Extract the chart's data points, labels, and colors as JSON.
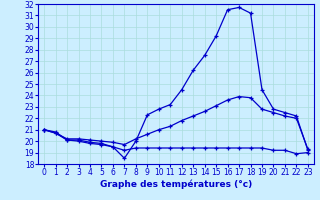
{
  "title": "Graphe des températures (°c)",
  "bg_color": "#cceeff",
  "line_color": "#0000cc",
  "xlim": [
    -0.5,
    23.5
  ],
  "ylim": [
    18,
    32
  ],
  "xticks": [
    0,
    1,
    2,
    3,
    4,
    5,
    6,
    7,
    8,
    9,
    10,
    11,
    12,
    13,
    14,
    15,
    16,
    17,
    18,
    19,
    20,
    21,
    22,
    23
  ],
  "yticks": [
    18,
    19,
    20,
    21,
    22,
    23,
    24,
    25,
    26,
    27,
    28,
    29,
    30,
    31,
    32
  ],
  "curve1_x": [
    0,
    1,
    2,
    3,
    4,
    5,
    6,
    7,
    8,
    9,
    10,
    11,
    12,
    13,
    14,
    15,
    16,
    17,
    18,
    19,
    20,
    21,
    22,
    23
  ],
  "curve1_y": [
    21.0,
    20.8,
    20.1,
    20.1,
    19.9,
    19.8,
    19.5,
    18.5,
    20.0,
    22.3,
    22.8,
    23.2,
    24.5,
    26.2,
    27.5,
    29.2,
    31.5,
    31.7,
    31.2,
    24.5,
    22.8,
    22.5,
    22.2,
    19.2
  ],
  "curve2_x": [
    0,
    1,
    2,
    3,
    4,
    5,
    6,
    7,
    8,
    9,
    10,
    11,
    12,
    13,
    14,
    15,
    16,
    17,
    18,
    19,
    20,
    21,
    22,
    23
  ],
  "curve2_y": [
    21.0,
    20.7,
    20.2,
    20.2,
    20.1,
    20.0,
    19.9,
    19.7,
    20.2,
    20.6,
    21.0,
    21.3,
    21.8,
    22.2,
    22.6,
    23.1,
    23.6,
    23.9,
    23.8,
    22.8,
    22.5,
    22.2,
    22.0,
    19.3
  ],
  "curve3_x": [
    0,
    1,
    2,
    3,
    4,
    5,
    6,
    7,
    8,
    9,
    10,
    11,
    12,
    13,
    14,
    15,
    16,
    17,
    18,
    19,
    20,
    21,
    22,
    23
  ],
  "curve3_y": [
    21.0,
    20.7,
    20.1,
    20.0,
    19.8,
    19.7,
    19.5,
    19.2,
    19.4,
    19.4,
    19.4,
    19.4,
    19.4,
    19.4,
    19.4,
    19.4,
    19.4,
    19.4,
    19.4,
    19.4,
    19.2,
    19.2,
    18.9,
    19.0
  ],
  "grid_color": "#aadddd",
  "tick_fontsize": 5.5,
  "xlabel_fontsize": 6.5
}
